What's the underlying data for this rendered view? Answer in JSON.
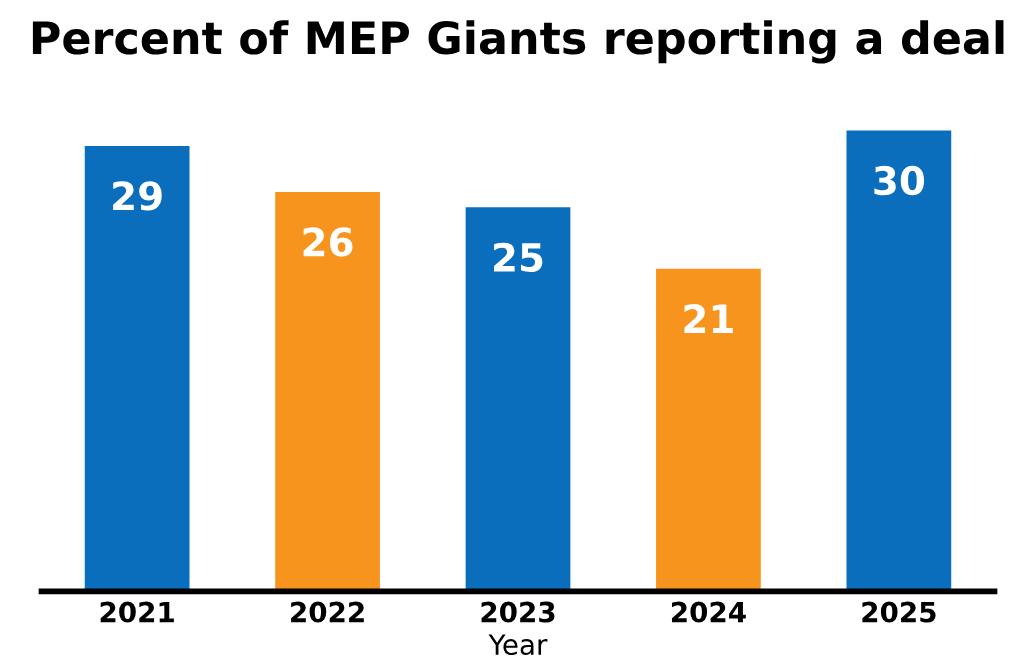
{
  "chart_data": {
    "type": "bar",
    "title": "Percent of MEP Giants reporting a deal",
    "xlabel": "Year",
    "categories": [
      "2021",
      "2022",
      "2023",
      "2024",
      "2025"
    ],
    "values": [
      29,
      26,
      25,
      21,
      30
    ],
    "colors": [
      "#0a6ebd",
      "#f7941d",
      "#0a6ebd",
      "#f7941d",
      "#0a6ebd"
    ],
    "data_labels": true
  }
}
